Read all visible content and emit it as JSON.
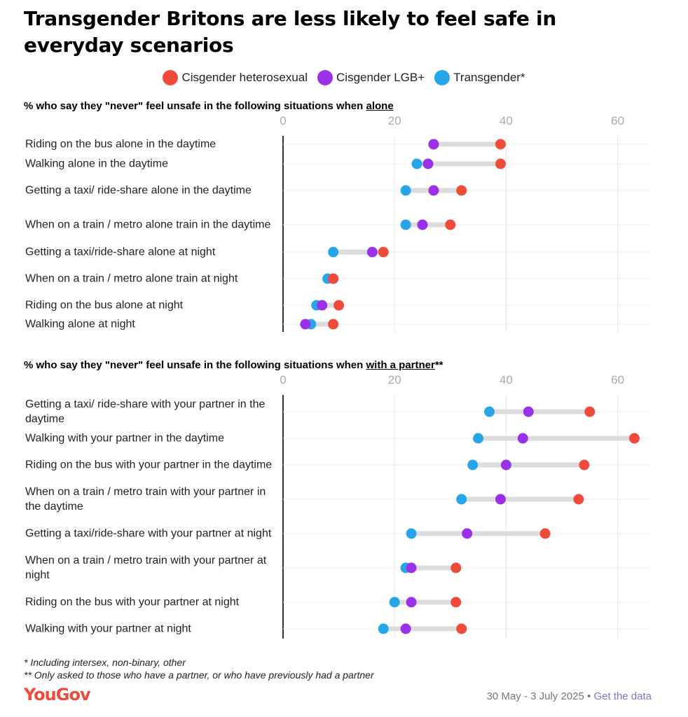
{
  "title": "Transgender Britons are less likely to feel safe in everyday scenarios",
  "legend": [
    {
      "name": "Cisgender heterosexual",
      "color": "#f04a3b"
    },
    {
      "name": "Cisgender LGB+",
      "color": "#9b30ea"
    },
    {
      "name": "Transgender*",
      "color": "#26a6e8"
    }
  ],
  "chart_data": [
    {
      "type": "dot",
      "title_prefix": "% who say they \"never\" feel unsafe in the following situations when ",
      "title_emphasis": "alone",
      "title_suffix": "",
      "xlim": [
        0,
        65
      ],
      "xticks": [
        0,
        20,
        40,
        60
      ],
      "grid": true,
      "categories": [
        "Riding on the bus alone in the daytime",
        "Walking alone in the daytime",
        "Getting a taxi/ ride-share alone in the daytime",
        "When on a train / metro alone train in the daytime",
        "Getting a taxi/ride-share alone at night",
        "When on a train / metro alone train at night",
        "Riding on the bus alone at night",
        "Walking alone at night"
      ],
      "series": [
        {
          "name": "Cisgender heterosexual",
          "values": [
            39,
            39,
            32,
            30,
            18,
            9,
            10,
            9
          ]
        },
        {
          "name": "Cisgender LGB+",
          "values": [
            27,
            26,
            27,
            25,
            16,
            9,
            7,
            4
          ]
        },
        {
          "name": "Transgender*",
          "values": [
            27,
            24,
            22,
            22,
            9,
            8,
            6,
            5
          ]
        }
      ]
    },
    {
      "type": "dot",
      "title_prefix": "% who say they \"never\" feel unsafe in the following situations when ",
      "title_emphasis": "with a partner",
      "title_suffix": "**",
      "xlim": [
        0,
        65
      ],
      "xticks": [
        0,
        20,
        40,
        60
      ],
      "grid": true,
      "categories": [
        "Getting a taxi/ ride-share with your partner in the daytime",
        "Walking with your partner in the daytime",
        "Riding on the bus with your partner in the daytime",
        "When on a train / metro train with your partner in the daytime",
        "Getting a taxi/ride-share with your partner at night",
        "When on a train / metro train with your partner at night",
        "Riding on the bus with your partner at night",
        "Walking with your partner at night"
      ],
      "series": [
        {
          "name": "Cisgender heterosexual",
          "values": [
            55,
            63,
            54,
            53,
            47,
            31,
            31,
            32
          ]
        },
        {
          "name": "Cisgender LGB+",
          "values": [
            44,
            43,
            40,
            39,
            33,
            23,
            23,
            22
          ]
        },
        {
          "name": "Transgender*",
          "values": [
            37,
            35,
            34,
            32,
            23,
            22,
            20,
            18
          ]
        }
      ]
    }
  ],
  "footnotes": [
    "* Including intersex, non-binary, other",
    "** Only asked to those who have a partner, or who have previously had a partner"
  ],
  "brand": "YouGov",
  "source": {
    "dates": "30 May - 3 July 2025",
    "separator": " • ",
    "link": "Get the data"
  }
}
